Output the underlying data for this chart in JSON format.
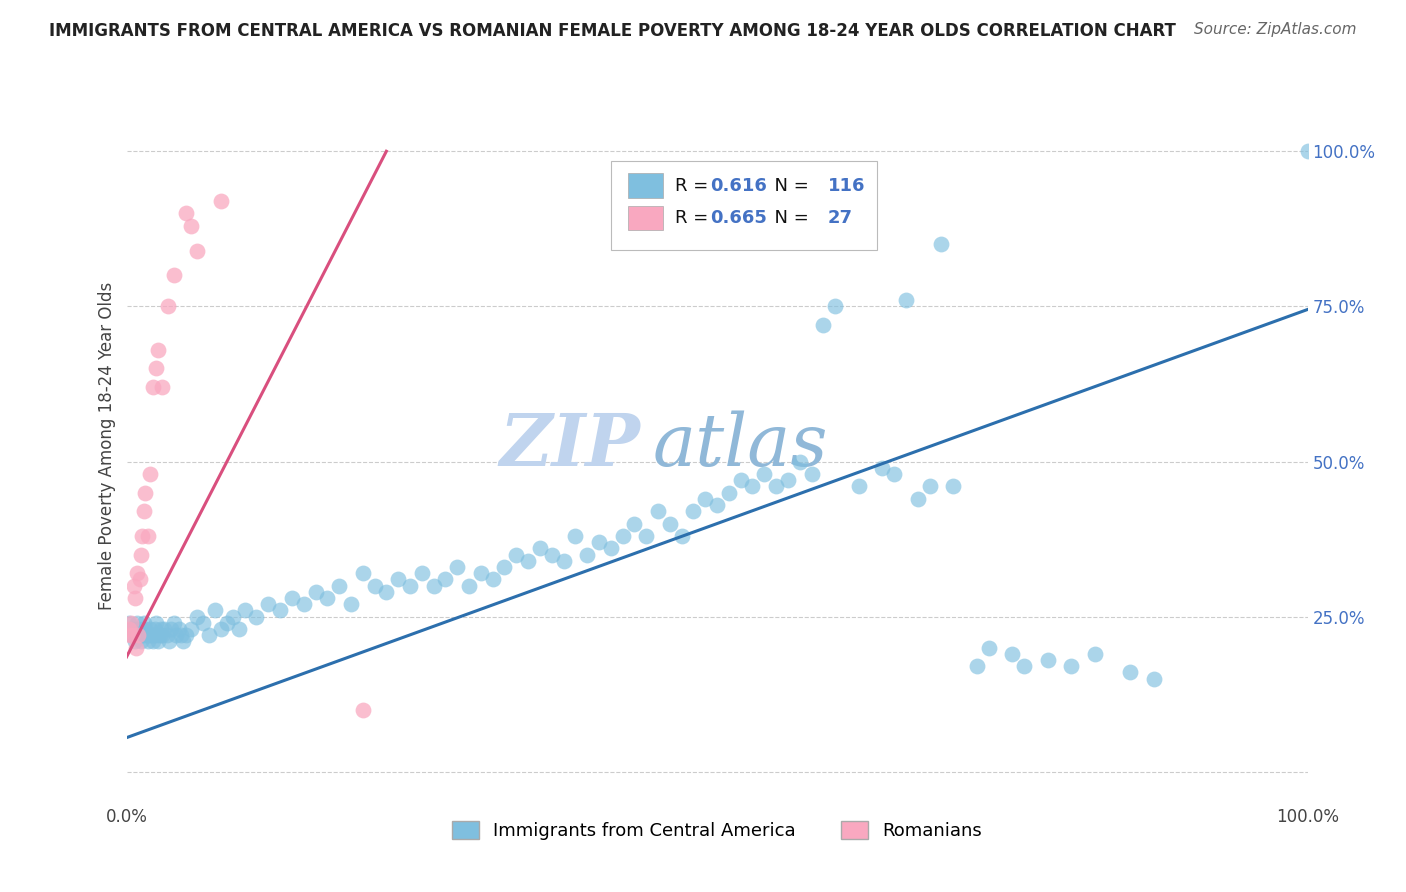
{
  "title": "IMMIGRANTS FROM CENTRAL AMERICA VS ROMANIAN FEMALE POVERTY AMONG 18-24 YEAR OLDS CORRELATION CHART",
  "source": "Source: ZipAtlas.com",
  "ylabel": "Female Poverty Among 18-24 Year Olds",
  "xlabel": "",
  "watermark_zip": "ZIP",
  "watermark_atlas": "atlas",
  "xlim": [
    0,
    1.0
  ],
  "ylim": [
    -0.05,
    1.1
  ],
  "ytick_positions": [
    0.0,
    0.25,
    0.5,
    0.75,
    1.0
  ],
  "ytick_labels_right": [
    "",
    "25.0%",
    "50.0%",
    "75.0%",
    "100.0%"
  ],
  "blue_R": "0.616",
  "blue_N": "116",
  "pink_R": "0.665",
  "pink_N": "27",
  "blue_color": "#7fbfdf",
  "pink_color": "#f9a8c0",
  "blue_line_color": "#2c6fad",
  "pink_line_color": "#d94f7e",
  "legend_label_blue": "Immigrants from Central America",
  "legend_label_pink": "Romanians",
  "stat_color": "#4472c4",
  "blue_points_x": [
    0.002,
    0.004,
    0.005,
    0.006,
    0.007,
    0.008,
    0.009,
    0.01,
    0.011,
    0.012,
    0.013,
    0.014,
    0.015,
    0.016,
    0.017,
    0.018,
    0.019,
    0.02,
    0.021,
    0.022,
    0.023,
    0.024,
    0.025,
    0.026,
    0.027,
    0.028,
    0.029,
    0.03,
    0.032,
    0.034,
    0.036,
    0.038,
    0.04,
    0.042,
    0.044,
    0.046,
    0.048,
    0.05,
    0.055,
    0.06,
    0.065,
    0.07,
    0.075,
    0.08,
    0.085,
    0.09,
    0.095,
    0.1,
    0.11,
    0.12,
    0.13,
    0.14,
    0.15,
    0.16,
    0.17,
    0.18,
    0.19,
    0.2,
    0.21,
    0.22,
    0.23,
    0.24,
    0.25,
    0.26,
    0.27,
    0.28,
    0.29,
    0.3,
    0.31,
    0.32,
    0.33,
    0.34,
    0.35,
    0.36,
    0.37,
    0.38,
    0.39,
    0.4,
    0.41,
    0.42,
    0.43,
    0.44,
    0.45,
    0.46,
    0.47,
    0.48,
    0.49,
    0.5,
    0.51,
    0.52,
    0.53,
    0.54,
    0.55,
    0.56,
    0.57,
    0.58,
    0.59,
    0.6,
    0.62,
    0.64,
    0.65,
    0.66,
    0.67,
    0.68,
    0.69,
    0.7,
    0.72,
    0.73,
    0.75,
    0.76,
    0.78,
    0.8,
    0.82,
    0.85,
    0.87,
    1.0
  ],
  "blue_points_y": [
    0.24,
    0.23,
    0.22,
    0.23,
    0.21,
    0.22,
    0.24,
    0.23,
    0.22,
    0.21,
    0.23,
    0.22,
    0.24,
    0.23,
    0.22,
    0.21,
    0.22,
    0.23,
    0.22,
    0.21,
    0.22,
    0.23,
    0.24,
    0.22,
    0.21,
    0.22,
    0.23,
    0.22,
    0.23,
    0.22,
    0.21,
    0.23,
    0.24,
    0.22,
    0.23,
    0.22,
    0.21,
    0.22,
    0.23,
    0.25,
    0.24,
    0.22,
    0.26,
    0.23,
    0.24,
    0.25,
    0.23,
    0.26,
    0.25,
    0.27,
    0.26,
    0.28,
    0.27,
    0.29,
    0.28,
    0.3,
    0.27,
    0.32,
    0.3,
    0.29,
    0.31,
    0.3,
    0.32,
    0.3,
    0.31,
    0.33,
    0.3,
    0.32,
    0.31,
    0.33,
    0.35,
    0.34,
    0.36,
    0.35,
    0.34,
    0.38,
    0.35,
    0.37,
    0.36,
    0.38,
    0.4,
    0.38,
    0.42,
    0.4,
    0.38,
    0.42,
    0.44,
    0.43,
    0.45,
    0.47,
    0.46,
    0.48,
    0.46,
    0.47,
    0.5,
    0.48,
    0.72,
    0.75,
    0.46,
    0.49,
    0.48,
    0.76,
    0.44,
    0.46,
    0.85,
    0.46,
    0.17,
    0.2,
    0.19,
    0.17,
    0.18,
    0.17,
    0.19,
    0.16,
    0.15,
    1.0
  ],
  "pink_points_x": [
    0.002,
    0.003,
    0.004,
    0.005,
    0.006,
    0.007,
    0.008,
    0.009,
    0.01,
    0.011,
    0.012,
    0.013,
    0.015,
    0.016,
    0.018,
    0.02,
    0.022,
    0.025,
    0.027,
    0.03,
    0.035,
    0.04,
    0.05,
    0.055,
    0.06,
    0.08,
    0.2
  ],
  "pink_points_y": [
    0.23,
    0.22,
    0.24,
    0.22,
    0.3,
    0.28,
    0.2,
    0.32,
    0.22,
    0.31,
    0.35,
    0.38,
    0.42,
    0.45,
    0.38,
    0.48,
    0.62,
    0.65,
    0.68,
    0.62,
    0.75,
    0.8,
    0.9,
    0.88,
    0.84,
    0.92,
    0.1
  ],
  "blue_line_x": [
    0.0,
    1.0
  ],
  "blue_line_y": [
    0.055,
    0.745
  ],
  "pink_line_x": [
    0.0,
    0.22
  ],
  "pink_line_y": [
    0.185,
    1.0
  ],
  "title_fontsize": 12,
  "source_fontsize": 11,
  "axis_label_fontsize": 12,
  "tick_fontsize": 12,
  "legend_fontsize": 13,
  "watermark_fontsize_zip": 52,
  "watermark_fontsize_atlas": 52,
  "watermark_color_zip": "#c0d4ee",
  "watermark_color_atlas": "#90b8d8",
  "background_color": "#ffffff",
  "grid_color": "#cccccc"
}
